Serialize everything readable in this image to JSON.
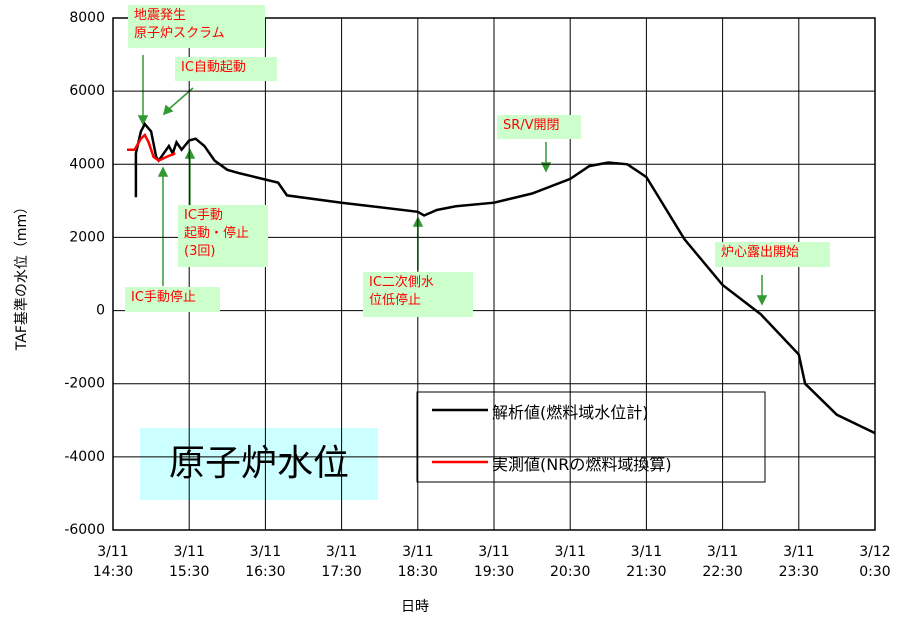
{
  "chart_data": {
    "type": "line",
    "subtitle": "原子炉水位",
    "xlabel": "日時",
    "ylabel": "TAF基準の水位（mm）",
    "xlim": [
      "3/11 14:30",
      "3/12 0:30"
    ],
    "xticks": [
      "3/11\n14:30",
      "3/11\n15:30",
      "3/11\n16:30",
      "3/11\n17:30",
      "3/11\n18:30",
      "3/11\n19:30",
      "3/11\n20:30",
      "3/11\n21:30",
      "3/11\n22:30",
      "3/11\n23:30",
      "3/12\n0:30"
    ],
    "ylim": [
      -6000,
      8000
    ],
    "yticks": [
      -6000,
      -4000,
      -2000,
      0,
      2000,
      4000,
      6000,
      8000
    ],
    "grid": true,
    "series": [
      {
        "name": "解析値(燃料域水位計)",
        "color": "#000000",
        "x": [
          "3/11 14:48",
          "3/11 14:48",
          "3/11 14:52",
          "3/11 14:55",
          "3/11 15:00",
          "3/11 15:04",
          "3/11 15:06",
          "3/11 15:14",
          "3/11 15:17",
          "3/11 15:20",
          "3/11 15:24",
          "3/11 15:30",
          "3/11 15:35",
          "3/11 15:42",
          "3/11 15:50",
          "3/11 16:00",
          "3/11 16:10",
          "3/11 16:40",
          "3/11 16:47",
          "3/11 17:30",
          "3/11 18:30",
          "3/11 18:35",
          "3/11 18:45",
          "3/11 19:00",
          "3/11 19:30",
          "3/11 20:00",
          "3/11 20:30",
          "3/11 20:45",
          "3/11 21:00",
          "3/11 21:15",
          "3/11 21:30",
          "3/11 22:00",
          "3/11 22:30",
          "3/11 23:00",
          "3/11 23:30",
          "3/11 23:35",
          "3/12 0:00",
          "3/12 0:30"
        ],
        "values": [
          3100,
          4300,
          4900,
          5100,
          4900,
          4200,
          4100,
          4500,
          4300,
          4600,
          4400,
          4650,
          4700,
          4500,
          4100,
          3850,
          3750,
          3500,
          3150,
          2950,
          2700,
          2600,
          2750,
          2850,
          2950,
          3200,
          3600,
          3950,
          4050,
          4000,
          3650,
          1950,
          700,
          -100,
          -1200,
          -2000,
          -2850,
          -3350
        ]
      },
      {
        "name": "実測値(NRの燃料域換算)",
        "color": "#ff0000",
        "x": [
          "3/11 14:41",
          "3/11 14:47",
          "3/11 14:52",
          "3/11 14:55",
          "3/11 14:58",
          "3/11 15:02",
          "3/11 15:06",
          "3/11 15:12",
          "3/11 15:19"
        ],
        "values": [
          4400,
          4400,
          4700,
          4800,
          4600,
          4200,
          4100,
          4200,
          4300
        ]
      }
    ],
    "annotations": [
      "地震発生\n原子炉スクラム",
      "IC自動起動",
      "IC手動\n起動・停止\n(3回)",
      "IC手動停止",
      "IC二次側水\n位低停止",
      "SR/V開閉",
      "炉心露出開始"
    ]
  }
}
